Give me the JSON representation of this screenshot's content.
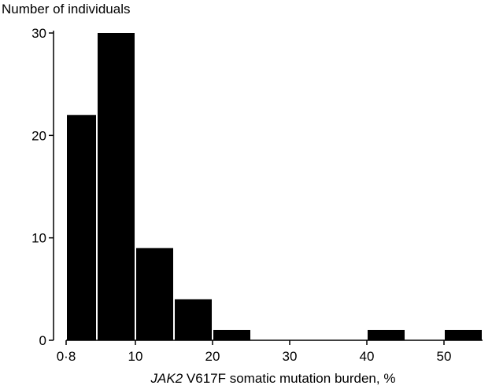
{
  "chart_data": {
    "type": "bar",
    "ylabel": "Number of individuals",
    "xlabel_italic": "JAK2",
    "xlabel_rest": " V617F somatic mutation burden, %",
    "x_ticks": [
      {
        "value": 0.8,
        "label": "0·8"
      },
      {
        "value": 10,
        "label": "10"
      },
      {
        "value": 20,
        "label": "20"
      },
      {
        "value": 30,
        "label": "30"
      },
      {
        "value": 40,
        "label": "40"
      },
      {
        "value": 50,
        "label": "50"
      }
    ],
    "y_ticks": [
      {
        "value": 0,
        "label": "0"
      },
      {
        "value": 10,
        "label": "10"
      },
      {
        "value": 20,
        "label": "20"
      },
      {
        "value": 30,
        "label": "30"
      }
    ],
    "xlim": [
      0,
      55
    ],
    "ylim": [
      0,
      30
    ],
    "bins": [
      {
        "start": 0.8,
        "end": 5,
        "count": 22
      },
      {
        "start": 5,
        "end": 10,
        "count": 30
      },
      {
        "start": 10,
        "end": 15,
        "count": 9
      },
      {
        "start": 15,
        "end": 20,
        "count": 4
      },
      {
        "start": 20,
        "end": 25,
        "count": 1
      },
      {
        "start": 40,
        "end": 45,
        "count": 1
      },
      {
        "start": 50,
        "end": 55,
        "count": 1
      }
    ],
    "bar_color": "#000000"
  }
}
